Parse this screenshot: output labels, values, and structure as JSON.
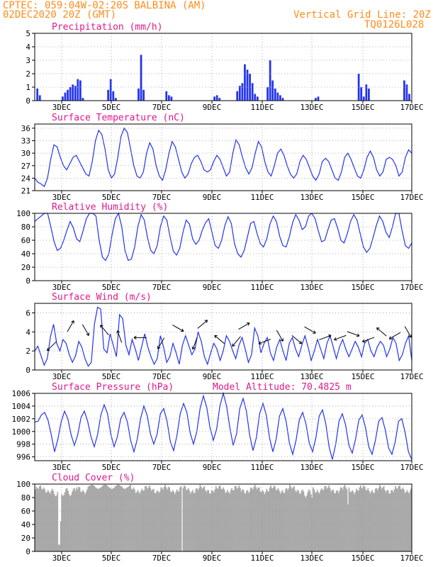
{
  "header": {
    "line1": "CPTEC:   059:04W-02:20S  BALBINA (AM)",
    "line2": "02DEC2020 20Z (GMT)",
    "right1": "Vertical Grid Line: 20Z",
    "right2": "TQ0126L028"
  },
  "colors": {
    "header": "#ff8c1a",
    "title": "#e0188c",
    "series": "#2233ee",
    "cloud": "#a9a9a9",
    "grid": "#9a9a9a"
  },
  "x_ticks": [
    "3DEC",
    "5DEC",
    "7DEC",
    "9DEC",
    "11DEC",
    "13DEC",
    "15DEC",
    "17DEC"
  ],
  "chart_data": [
    {
      "type": "bar",
      "title": "Precipitation (mm/h)",
      "ylim": [
        0,
        5
      ],
      "yticks": [
        0,
        1,
        2,
        3,
        4,
        5
      ],
      "x_start": "02DEC2020 20Z",
      "x_step_hours": 3,
      "grid": true,
      "values": [
        0,
        0.9,
        0.4,
        0,
        0,
        0,
        0,
        0,
        0,
        0,
        0,
        0.3,
        0.6,
        0.8,
        1.0,
        1.2,
        1.1,
        1.6,
        1.5,
        0.2,
        0,
        0,
        0,
        0,
        0,
        0,
        0,
        0,
        0,
        0.8,
        1.6,
        0.7,
        0.2,
        0,
        0,
        0,
        0,
        0,
        0,
        0,
        0,
        0.9,
        3.4,
        0.8,
        0,
        0,
        0,
        0,
        0,
        0,
        0,
        0,
        0.7,
        0.4,
        0.3,
        0,
        0,
        0,
        0,
        0,
        0,
        0,
        0,
        0,
        0,
        0,
        0,
        0,
        0,
        0,
        0,
        0.3,
        0.4,
        0.2,
        0,
        0,
        0,
        0,
        0,
        0,
        0.7,
        1.1,
        1.3,
        2.7,
        2.3,
        2.0,
        1.3,
        0.5,
        0.3,
        0,
        0,
        0,
        1.0,
        3.0,
        1.5,
        0.9,
        0.6,
        0.4,
        0.2,
        0,
        0,
        0,
        0,
        0,
        0,
        0,
        0,
        0,
        0,
        0,
        0,
        0.2,
        0.3,
        0,
        0,
        0,
        0,
        0,
        0,
        0,
        0,
        0,
        0,
        0,
        0,
        0,
        0,
        0,
        2.0,
        1.0,
        0.3,
        1.2,
        0.9,
        0,
        0,
        0,
        0,
        0,
        0,
        0,
        0,
        0,
        0,
        0,
        0,
        0,
        1.5,
        1.2,
        0.5,
        0
      ]
    },
    {
      "type": "line",
      "title": "Surface Temperature (nC)",
      "ylim": [
        21,
        37
      ],
      "yticks": [
        21,
        24,
        27,
        30,
        33,
        36
      ],
      "grid": true,
      "x_start": "02DEC2020 20Z",
      "x_step_hours": 3,
      "values": [
        24,
        23,
        22.6,
        22,
        24,
        28.5,
        32,
        31.5,
        29,
        27,
        26,
        27.5,
        29,
        29.5,
        28,
        26.5,
        25,
        24.5,
        28,
        33,
        35.5,
        34.5,
        31,
        26,
        24,
        25,
        29,
        34,
        36,
        35,
        31,
        27,
        24.5,
        24,
        25.5,
        30,
        32.5,
        31,
        27,
        24.5,
        23.5,
        26,
        30,
        32.8,
        31.5,
        28.5,
        25.5,
        24,
        25,
        27.5,
        29,
        29.5,
        28,
        26,
        25.5,
        26,
        28,
        29.5,
        28.5,
        26.5,
        24.5,
        25.5,
        30,
        33.2,
        32,
        29,
        26.5,
        25,
        26.5,
        30,
        32.8,
        31.5,
        28,
        25.5,
        24.5,
        27,
        30,
        31,
        29.5,
        27,
        25,
        24,
        25,
        28,
        29.5,
        28.5,
        26.5,
        24.5,
        23.5,
        25,
        28,
        28.8,
        28,
        26,
        24,
        23.5,
        25.5,
        29,
        30,
        28.5,
        26.5,
        24.5,
        24,
        26,
        29,
        30.5,
        29,
        26,
        24.5,
        25.5,
        28.5,
        29,
        28.5,
        27,
        24.5,
        25.5,
        29,
        30.8,
        30
      ]
    },
    {
      "type": "line",
      "title": "Relative Humidity (%)",
      "ylim": [
        0,
        100
      ],
      "yticks": [
        0,
        20,
        40,
        60,
        80,
        100
      ],
      "grid": true,
      "x_start": "02DEC2020 20Z",
      "x_step_hours": 3,
      "values": [
        88,
        92,
        96,
        100,
        100,
        80,
        58,
        45,
        48,
        60,
        75,
        88,
        78,
        62,
        58,
        74,
        92,
        100,
        100,
        96,
        60,
        35,
        30,
        40,
        68,
        92,
        100,
        80,
        45,
        30,
        32,
        50,
        80,
        98,
        90,
        64,
        45,
        40,
        52,
        80,
        96,
        90,
        65,
        44,
        38,
        48,
        72,
        90,
        84,
        62,
        54,
        60,
        75,
        86,
        92,
        72,
        52,
        48,
        60,
        82,
        95,
        85,
        55,
        40,
        35,
        45,
        65,
        85,
        88,
        70,
        55,
        50,
        62,
        84,
        96,
        88,
        66,
        52,
        50,
        65,
        86,
        98,
        90,
        76,
        80,
        96,
        100,
        92,
        74,
        58,
        60,
        76,
        90,
        92,
        78,
        60,
        56,
        70,
        88,
        98,
        90,
        70,
        50,
        42,
        48,
        64,
        82,
        96,
        88,
        72,
        64,
        80,
        100,
        100,
        74,
        52,
        48,
        56
      ]
    },
    {
      "type": "line",
      "title": "Surface Wind (m/s)",
      "ylim": [
        0,
        7
      ],
      "yticks": [
        0,
        2,
        4,
        6
      ],
      "grid": true,
      "x_start": "02DEC2020 20Z",
      "x_step_hours": 3,
      "values": [
        2.0,
        2.5,
        1.5,
        0.5,
        1.2,
        3.5,
        4.8,
        2.8,
        2.0,
        3.2,
        2.8,
        1.6,
        0.8,
        1.5,
        3.0,
        2.4,
        1.2,
        0.4,
        0.8,
        4.8,
        6.6,
        6.4,
        2.2,
        1.8,
        3.8,
        2.6,
        1.4,
        5.8,
        5.4,
        2.6,
        1.6,
        3.2,
        2.2,
        1.0,
        2.4,
        3.8,
        2.4,
        1.4,
        0.6,
        1.2,
        3.6,
        2.4,
        0.8,
        1.4,
        2.8,
        1.8,
        0.6,
        2.6,
        3.6,
        2.6,
        1.6,
        2.2,
        4.0,
        3.0,
        1.4,
        0.6,
        1.8,
        2.8,
        2.2,
        1.0,
        2.0,
        3.6,
        3.0,
        2.0,
        1.2,
        2.6,
        3.4,
        2.2,
        0.8,
        1.6,
        4.4,
        3.6,
        1.8,
        2.8,
        3.4,
        1.8,
        1.0,
        2.4,
        3.2,
        2.0,
        1.0,
        2.8,
        3.4,
        2.2,
        1.4,
        2.6,
        3.6,
        2.4,
        1.0,
        2.0,
        3.2,
        2.2,
        1.2,
        2.8,
        3.6,
        2.4,
        1.2,
        2.4,
        3.2,
        2.2,
        1.4,
        2.2,
        3.0,
        2.4,
        1.4,
        2.8,
        3.2,
        2.0,
        1.4,
        2.4,
        3.0,
        2.6,
        1.4,
        2.2,
        3.4,
        2.8,
        1.0,
        1.6,
        2.8,
        3.6,
        1.0
      ],
      "arrows": [
        {
          "x": 0.045,
          "y": 2.5,
          "ang": 225
        },
        {
          "x": 0.095,
          "y": 4.6,
          "ang": 60
        },
        {
          "x": 0.135,
          "y": 4.2,
          "ang": 300
        },
        {
          "x": 0.185,
          "y": 4.2,
          "ang": 130
        },
        {
          "x": 0.225,
          "y": 3.5,
          "ang": 110
        },
        {
          "x": 0.28,
          "y": 3.4,
          "ang": 180
        },
        {
          "x": 0.335,
          "y": 2.8,
          "ang": 240
        },
        {
          "x": 0.38,
          "y": 4.4,
          "ang": 330
        },
        {
          "x": 0.425,
          "y": 2.8,
          "ang": 250
        },
        {
          "x": 0.445,
          "y": 4.8,
          "ang": 40
        },
        {
          "x": 0.49,
          "y": 3.2,
          "ang": 140
        },
        {
          "x": 0.535,
          "y": 3.0,
          "ang": 230
        },
        {
          "x": 0.555,
          "y": 4.6,
          "ang": 30
        },
        {
          "x": 0.61,
          "y": 3.0,
          "ang": 200
        },
        {
          "x": 0.65,
          "y": 3.6,
          "ang": 300
        },
        {
          "x": 0.695,
          "y": 3.2,
          "ang": 320
        },
        {
          "x": 0.73,
          "y": 4.2,
          "ang": 330
        },
        {
          "x": 0.77,
          "y": 3.4,
          "ang": 20
        },
        {
          "x": 0.81,
          "y": 3.4,
          "ang": 200
        },
        {
          "x": 0.845,
          "y": 3.8,
          "ang": 340
        },
        {
          "x": 0.885,
          "y": 3.2,
          "ang": 200
        },
        {
          "x": 0.92,
          "y": 4.0,
          "ang": 140
        },
        {
          "x": 0.955,
          "y": 3.6,
          "ang": 210
        },
        {
          "x": 0.99,
          "y": 4.0,
          "ang": 300
        }
      ]
    },
    {
      "type": "line",
      "title": "Surface Pressure (hPa)",
      "annotation": "Model Altitude: 70.4825 m",
      "ylim": [
        995.4,
        1006
      ],
      "yticks": [
        996,
        998,
        1000,
        1002,
        1004,
        1006
      ],
      "grid": true,
      "x_start": "02DEC2020 20Z",
      "x_step_hours": 3,
      "values": [
        1001.5,
        1001.6,
        1002.6,
        1003.0,
        1001.8,
        999.5,
        996.8,
        998.8,
        1001.5,
        1003.2,
        1002.0,
        999.5,
        997.8,
        999.5,
        1002.2,
        1003.2,
        1001.6,
        999.2,
        997.6,
        999.5,
        1002.6,
        1004.2,
        1002.8,
        999.6,
        997.6,
        999.2,
        1002.0,
        1003.0,
        1001.5,
        998.6,
        996.8,
        998.8,
        1002.0,
        1004.0,
        1002.5,
        999.6,
        998.0,
        999.6,
        1002.8,
        1003.6,
        1001.6,
        998.4,
        997.0,
        999.4,
        1002.8,
        1004.4,
        1003.0,
        999.8,
        998.0,
        1000.0,
        1003.6,
        1005.6,
        1003.8,
        1000.6,
        998.6,
        1000.4,
        1004.0,
        1006.0,
        1004.0,
        1000.6,
        997.8,
        999.6,
        1003.6,
        1005.2,
        1003.2,
        999.4,
        997.0,
        999.0,
        1002.8,
        1004.4,
        1002.6,
        999.0,
        996.8,
        998.8,
        1002.4,
        1003.6,
        1001.6,
        998.2,
        996.4,
        998.6,
        1001.8,
        1003.0,
        1001.2,
        998.2,
        996.8,
        999.0,
        1002.4,
        1003.4,
        1001.2,
        997.6,
        995.6,
        998.0,
        1001.6,
        1002.8,
        1001.0,
        997.8,
        996.6,
        998.8,
        1001.8,
        1002.6,
        1000.6,
        997.6,
        996.4,
        998.6,
        1001.6,
        1002.2,
        1000.2,
        997.4,
        996.4,
        998.4,
        1001.6,
        1002.0,
        999.8,
        996.8,
        995.6
      ]
    },
    {
      "type": "bar",
      "title": "Cloud Cover (%)",
      "ylim": [
        0,
        100
      ],
      "yticks": [
        0,
        20,
        40,
        60,
        80,
        100
      ],
      "grid": true,
      "x_start": "02DEC2020 20Z",
      "x_step_hours": 1,
      "values_note": "hourly series encoded below",
      "values": []
    }
  ]
}
